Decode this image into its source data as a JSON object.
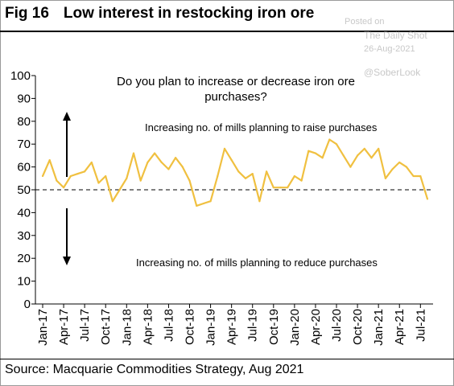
{
  "header": {
    "fig_label": "Fig 16",
    "title": "Low interest in restocking iron ore"
  },
  "watermark": {
    "posted": "Posted on",
    "site": "The Daily Shot",
    "date": "26-Aug-2021",
    "handle": "@SoberLook"
  },
  "footer": {
    "source": "Source: Macquarie Commodities Strategy, Aug 2021"
  },
  "chart_data": {
    "type": "line",
    "title": "",
    "xlabel": "",
    "ylabel": "",
    "ylim": [
      0,
      100
    ],
    "yticks": [
      0,
      10,
      20,
      30,
      40,
      50,
      60,
      70,
      80,
      90,
      100
    ],
    "x_tick_labels": [
      "Jan-17",
      "Apr-17",
      "Jul-17",
      "Oct-17",
      "Jan-18",
      "Apr-18",
      "Jul-18",
      "Oct-18",
      "Jan-19",
      "Apr-19",
      "Jul-19",
      "Oct-19",
      "Jan-20",
      "Apr-20",
      "Jul-20",
      "Oct-20",
      "Jan-21",
      "Apr-21",
      "Jul-21"
    ],
    "reference_line": 50,
    "line_color": "#f0c040",
    "question_lines": [
      "Do you plan to increase or decrease iron ore",
      "purchases?"
    ],
    "annotations": {
      "up": "Increasing no. of mills planning to raise purchases",
      "down": "Increasing no. of mills planning to reduce purchases"
    },
    "series": [
      {
        "values": [
          56,
          63,
          54,
          51,
          56,
          57,
          58,
          62,
          53,
          56,
          45,
          50,
          55,
          66,
          54,
          62,
          66,
          62,
          59,
          64,
          60,
          54,
          43,
          44,
          45,
          56,
          68,
          63,
          58,
          55,
          57,
          45,
          58,
          51,
          51,
          51,
          56,
          54,
          67,
          66,
          64,
          72,
          70,
          65,
          60,
          65,
          68,
          64,
          68,
          55,
          59,
          62,
          60,
          56,
          56,
          46
        ]
      }
    ]
  }
}
